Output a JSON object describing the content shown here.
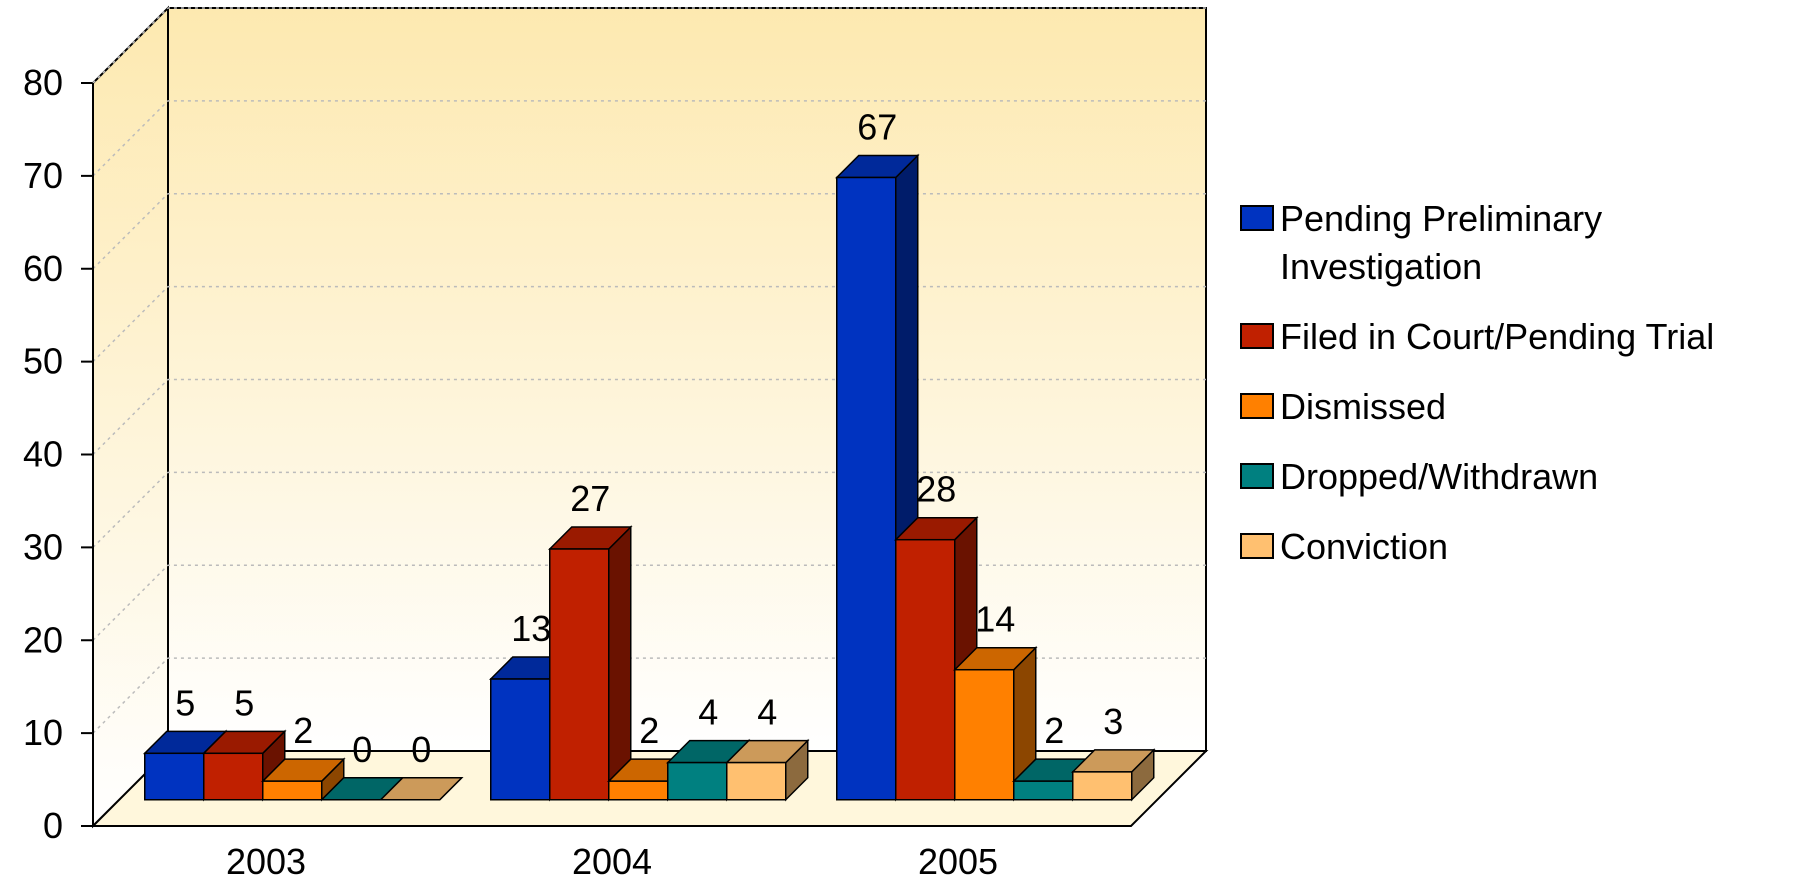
{
  "chart_data": {
    "type": "bar3d",
    "categories": [
      "2003",
      "2004",
      "2005"
    ],
    "series": [
      {
        "name": "Pending Preliminary Investigation",
        "color": "#0033c0",
        "values": [
          5,
          13,
          67
        ]
      },
      {
        "name": "Filed in Court/Pending Trial",
        "color": "#c02000",
        "values": [
          5,
          27,
          28
        ]
      },
      {
        "name": "Dismissed",
        "color": "#ff8000",
        "values": [
          2,
          2,
          14
        ]
      },
      {
        "name": "Dropped/Withdrawn",
        "color": "#008080",
        "values": [
          0,
          4,
          2
        ]
      },
      {
        "name": "Conviction",
        "color": "#ffc070",
        "values": [
          0,
          4,
          3
        ]
      }
    ],
    "ylim": [
      0,
      80
    ],
    "yticks": [
      0,
      10,
      20,
      30,
      40,
      50,
      60,
      70,
      80
    ],
    "grid": true,
    "legend": "right"
  }
}
